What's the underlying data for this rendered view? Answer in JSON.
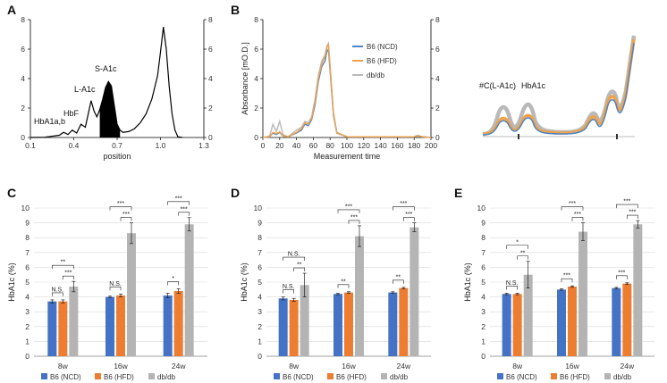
{
  "chart_data": [
    {
      "panel": "A",
      "type": "line",
      "title": "",
      "xlabel": "position",
      "ylabel": "",
      "xlim": [
        0.1,
        1.3
      ],
      "xticks": [
        "0.1",
        "0.4",
        "0.7",
        "1.0",
        "1.3"
      ],
      "ylim": [
        0,
        8
      ],
      "yticks": [
        "0",
        "2",
        "4",
        "6",
        "8"
      ],
      "y2ticks": [
        "0",
        "2",
        "4",
        "6",
        "8"
      ],
      "peak_labels": [
        "HbA1a,b",
        "HbF",
        "L-A1c",
        "S-A1c"
      ],
      "shaded_peak": "S-A1c",
      "series": [
        {
          "name": "chromatogram",
          "x": [
            0.1,
            0.2,
            0.3,
            0.33,
            0.36,
            0.39,
            0.42,
            0.45,
            0.48,
            0.5,
            0.52,
            0.54,
            0.56,
            0.58,
            0.6,
            0.62,
            0.64,
            0.66,
            0.68,
            0.7,
            0.72,
            0.74,
            0.78,
            0.82,
            0.86,
            0.9,
            0.94,
            0.98,
            1.0,
            1.02,
            1.04,
            1.06,
            1.08,
            1.1,
            1.12,
            1.15
          ],
          "y": [
            0.0,
            0.02,
            0.15,
            0.35,
            0.2,
            0.5,
            0.3,
            0.9,
            0.7,
            1.6,
            2.5,
            1.8,
            1.4,
            1.9,
            2.6,
            3.4,
            3.8,
            3.5,
            2.2,
            0.9,
            0.5,
            0.35,
            0.4,
            0.6,
            1.0,
            1.6,
            2.6,
            4.2,
            5.8,
            7.5,
            6.0,
            3.5,
            1.6,
            0.5,
            0.05,
            0.0
          ]
        }
      ]
    },
    {
      "panel": "B",
      "type": "line",
      "xlabel": "Measurement time",
      "ylabel": "Absorbance [mO.D.]",
      "xlim": [
        0,
        200
      ],
      "xticks": [
        "0",
        "20",
        "40",
        "60",
        "80",
        "100",
        "120",
        "140",
        "160",
        "180",
        "200"
      ],
      "ylim": [
        0,
        8
      ],
      "yticks": [
        "0",
        "2",
        "4",
        "6",
        "8"
      ],
      "y2ticks": [
        "0",
        "2",
        "4",
        "6",
        "8"
      ],
      "legend": [
        "B6 (NCD)",
        "B6 (HFD)",
        "db/db"
      ],
      "colors": [
        "#4a86c8",
        "#f0a24a",
        "#b9b9b9"
      ],
      "series": [
        {
          "name": "B6 (NCD)",
          "x": [
            0,
            8,
            12,
            16,
            20,
            24,
            30,
            40,
            46,
            50,
            54,
            58,
            62,
            66,
            70,
            74,
            76,
            78,
            80,
            84,
            88,
            100,
            180,
            184,
            190,
            200
          ],
          "y": [
            0,
            0.05,
            0.3,
            0.2,
            0.35,
            0.1,
            0.05,
            0.3,
            0.5,
            0.9,
            0.8,
            1.2,
            2.2,
            3.8,
            4.8,
            5.2,
            5.8,
            6.0,
            4.5,
            1.5,
            0.3,
            0.05,
            0.05,
            0.1,
            0.05,
            0.0
          ]
        },
        {
          "name": "B6 (HFD)",
          "x": [
            0,
            8,
            12,
            16,
            20,
            24,
            30,
            40,
            46,
            50,
            54,
            58,
            62,
            66,
            70,
            74,
            76,
            78,
            80,
            84,
            88,
            100,
            180,
            184,
            190,
            200
          ],
          "y": [
            0,
            0.05,
            0.35,
            0.25,
            0.4,
            0.1,
            0.05,
            0.35,
            0.6,
            1.0,
            0.9,
            1.3,
            2.4,
            4.0,
            5.0,
            5.5,
            6.1,
            6.3,
            4.7,
            1.6,
            0.3,
            0.05,
            0.05,
            0.1,
            0.05,
            0.0
          ]
        },
        {
          "name": "db/db",
          "x": [
            0,
            8,
            12,
            16,
            20,
            24,
            30,
            40,
            46,
            50,
            54,
            58,
            62,
            66,
            70,
            74,
            76,
            78,
            80,
            84,
            88,
            100,
            180,
            184,
            190,
            200
          ],
          "y": [
            0,
            0.1,
            0.9,
            0.4,
            1.1,
            0.2,
            0.05,
            0.5,
            0.7,
            1.1,
            1.0,
            1.4,
            2.6,
            4.2,
            5.2,
            5.6,
            6.2,
            6.4,
            4.9,
            1.7,
            0.35,
            0.05,
            0.05,
            0.15,
            0.05,
            0.0
          ]
        }
      ],
      "inset_labels": [
        "#C(L-A1c)",
        "HbA1c"
      ]
    },
    {
      "panel": "C",
      "type": "bar",
      "categories": [
        "8w",
        "16w",
        "24w"
      ],
      "ylabel": "HbA1c (%)",
      "ylim": [
        0,
        10
      ],
      "yticks": [
        "0",
        "1",
        "2",
        "3",
        "4",
        "5",
        "6",
        "7",
        "8",
        "9",
        "10"
      ],
      "series": [
        {
          "name": "B6 (NCD)",
          "values": [
            3.7,
            4.0,
            4.1
          ],
          "errors": [
            0.1,
            0.05,
            0.15
          ]
        },
        {
          "name": "B6 (HFD)",
          "values": [
            3.7,
            4.1,
            4.4
          ],
          "errors": [
            0.1,
            0.1,
            0.15
          ]
        },
        {
          "name": "db/db",
          "values": [
            4.7,
            8.3,
            8.9
          ],
          "errors": [
            0.35,
            0.7,
            0.45
          ]
        }
      ],
      "significance": [
        {
          "group": "8w",
          "pair": "NCD-HFD",
          "label": "N.S."
        },
        {
          "group": "8w",
          "pair": "HFD-dbdb",
          "label": "***"
        },
        {
          "group": "8w",
          "pair": "NCD-dbdb",
          "label": "**"
        },
        {
          "group": "16w",
          "pair": "NCD-HFD",
          "label": "N.S."
        },
        {
          "group": "16w",
          "pair": "HFD-dbdb",
          "label": "***"
        },
        {
          "group": "16w",
          "pair": "NCD-dbdb",
          "label": "***"
        },
        {
          "group": "24w",
          "pair": "NCD-HFD",
          "label": "*"
        },
        {
          "group": "24w",
          "pair": "HFD-dbdb",
          "label": "***"
        },
        {
          "group": "24w",
          "pair": "NCD-dbdb",
          "label": "***"
        }
      ]
    },
    {
      "panel": "D",
      "type": "bar",
      "categories": [
        "8w",
        "16w",
        "24w"
      ],
      "ylabel": "HbA1c (%)",
      "ylim": [
        0,
        10
      ],
      "yticks": [
        "0",
        "1",
        "2",
        "3",
        "4",
        "5",
        "6",
        "7",
        "8",
        "9",
        "10"
      ],
      "series": [
        {
          "name": "B6 (NCD)",
          "values": [
            3.9,
            4.2,
            4.3
          ],
          "errors": [
            0.1,
            0.05,
            0.05
          ]
        },
        {
          "name": "B6 (HFD)",
          "values": [
            3.8,
            4.3,
            4.6
          ],
          "errors": [
            0.1,
            0.05,
            0.05
          ]
        },
        {
          "name": "db/db",
          "values": [
            4.8,
            8.1,
            8.7
          ],
          "errors": [
            0.8,
            0.7,
            0.3
          ]
        }
      ],
      "significance": [
        {
          "group": "8w",
          "pair": "NCD-HFD",
          "label": "N.S."
        },
        {
          "group": "8w",
          "pair": "HFD-dbdb",
          "label": "**"
        },
        {
          "group": "8w",
          "pair": "NCD-dbdb",
          "label": "N.S."
        },
        {
          "group": "16w",
          "pair": "NCD-HFD",
          "label": "**"
        },
        {
          "group": "16w",
          "pair": "HFD-dbdb",
          "label": "***"
        },
        {
          "group": "16w",
          "pair": "NCD-dbdb",
          "label": "***"
        },
        {
          "group": "24w",
          "pair": "NCD-HFD",
          "label": "**"
        },
        {
          "group": "24w",
          "pair": "HFD-dbdb",
          "label": "***"
        },
        {
          "group": "24w",
          "pair": "NCD-dbdb",
          "label": "***"
        }
      ]
    },
    {
      "panel": "E",
      "type": "bar",
      "categories": [
        "8w",
        "16w",
        "24w"
      ],
      "ylabel": "HbA1c (%)",
      "ylim": [
        0,
        10
      ],
      "yticks": [
        "0",
        "1",
        "2",
        "3",
        "4",
        "5",
        "6",
        "7",
        "8",
        "9",
        "10"
      ],
      "series": [
        {
          "name": "B6 (NCD)",
          "values": [
            4.2,
            4.5,
            4.6
          ],
          "errors": [
            0.05,
            0.05,
            0.05
          ]
        },
        {
          "name": "B6 (HFD)",
          "values": [
            4.2,
            4.7,
            4.9
          ],
          "errors": [
            0.05,
            0.05,
            0.05
          ]
        },
        {
          "name": "db/db",
          "values": [
            5.5,
            8.4,
            8.9
          ],
          "errors": [
            0.9,
            0.6,
            0.25
          ]
        }
      ],
      "significance": [
        {
          "group": "8w",
          "pair": "NCD-HFD",
          "label": "N.S."
        },
        {
          "group": "8w",
          "pair": "HFD-dbdb",
          "label": "**"
        },
        {
          "group": "8w",
          "pair": "NCD-dbdb",
          "label": "*"
        },
        {
          "group": "16w",
          "pair": "NCD-HFD",
          "label": "***"
        },
        {
          "group": "16w",
          "pair": "HFD-dbdb",
          "label": "***"
        },
        {
          "group": "16w",
          "pair": "NCD-dbdb",
          "label": "***"
        },
        {
          "group": "24w",
          "pair": "NCD-HFD",
          "label": "***"
        },
        {
          "group": "24w",
          "pair": "HFD-dbdb",
          "label": "***"
        },
        {
          "group": "24w",
          "pair": "NCD-dbdb",
          "label": "***"
        }
      ]
    }
  ],
  "legend": {
    "items": [
      "B6 (NCD)",
      "B6 (HFD)",
      "db/db"
    ],
    "colors": [
      "#4472c4",
      "#ed7d31",
      "#b4b4b4"
    ]
  },
  "panel_letters": [
    "A",
    "B",
    "C",
    "D",
    "E"
  ]
}
